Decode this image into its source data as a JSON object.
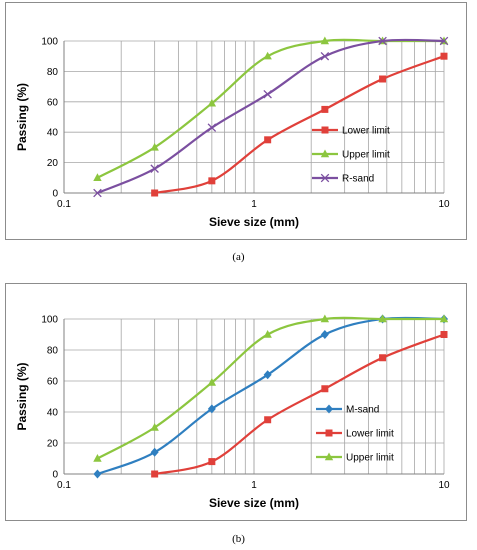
{
  "colors": {
    "lower": "#e0403a",
    "upper": "#8cc63f",
    "rsand": "#7b4fa0",
    "msand": "#2f7fc0",
    "grid": "#a6a6a6",
    "axis": "#808080"
  },
  "chart_data": [
    {
      "type": "line",
      "panel_label": "(a)",
      "xlabel": "Sieve size  (mm)",
      "ylabel": "Passing  (%)",
      "xscale": "log",
      "xlim": [
        0.1,
        10
      ],
      "ylim": [
        0,
        100
      ],
      "xticks": [
        0.1,
        1,
        10
      ],
      "xtick_labels": [
        "0.1",
        "1",
        "10"
      ],
      "yticks": [
        0,
        20,
        40,
        60,
        80,
        100
      ],
      "grid": true,
      "legend_position": "right-middle",
      "series": [
        {
          "name": "Lower limit",
          "color_key": "lower",
          "marker": "square",
          "x": [
            0.3,
            0.6,
            1.18,
            2.36,
            4.75,
            10
          ],
          "y": [
            0,
            8,
            35,
            55,
            75,
            90
          ]
        },
        {
          "name": "Upper limit",
          "color_key": "upper",
          "marker": "triangle",
          "x": [
            0.15,
            0.3,
            0.6,
            1.18,
            2.36,
            4.75,
            10
          ],
          "y": [
            10,
            30,
            59,
            90,
            100,
            100,
            100
          ]
        },
        {
          "name": "R-sand",
          "color_key": "rsand",
          "marker": "x",
          "x": [
            0.15,
            0.3,
            0.6,
            1.18,
            2.36,
            4.75,
            10
          ],
          "y": [
            0,
            16,
            43,
            65,
            90,
            100,
            100
          ]
        }
      ]
    },
    {
      "type": "line",
      "panel_label": "(b)",
      "xlabel": "Sieve size  (mm)",
      "ylabel": "Passing  (%)",
      "xscale": "log",
      "xlim": [
        0.1,
        10
      ],
      "ylim": [
        0,
        100
      ],
      "xticks": [
        0.1,
        1,
        10
      ],
      "xtick_labels": [
        "0.1",
        "1",
        "10"
      ],
      "yticks": [
        0,
        20,
        40,
        60,
        80,
        100
      ],
      "grid": true,
      "legend_position": "right-middle",
      "series": [
        {
          "name": "M-sand",
          "color_key": "msand",
          "marker": "diamond",
          "x": [
            0.15,
            0.3,
            0.6,
            1.18,
            2.36,
            4.75,
            10
          ],
          "y": [
            0,
            14,
            42,
            64,
            90,
            100,
            100
          ]
        },
        {
          "name": "Lower limit",
          "color_key": "lower",
          "marker": "square",
          "x": [
            0.3,
            0.6,
            1.18,
            2.36,
            4.75,
            10
          ],
          "y": [
            0,
            8,
            35,
            55,
            75,
            90
          ]
        },
        {
          "name": "Upper limit",
          "color_key": "upper",
          "marker": "triangle",
          "x": [
            0.15,
            0.3,
            0.6,
            1.18,
            2.36,
            4.75,
            10
          ],
          "y": [
            10,
            30,
            59,
            90,
            100,
            100,
            100
          ]
        }
      ]
    }
  ]
}
